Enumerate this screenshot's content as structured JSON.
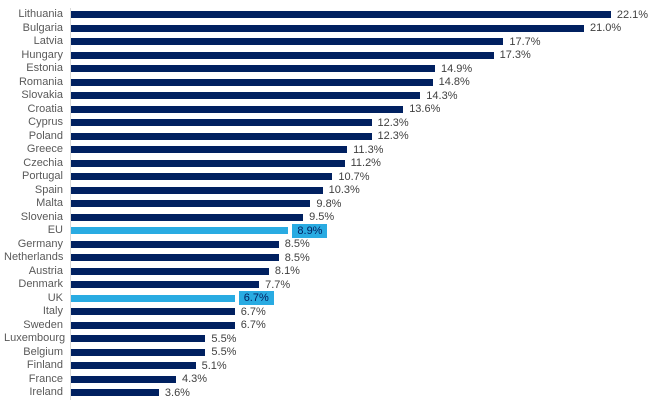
{
  "chart_data": {
    "type": "bar",
    "orientation": "horizontal",
    "title": "",
    "xlabel": "",
    "ylabel": "",
    "xlim": [
      0,
      24.2
    ],
    "grid": false,
    "legend": false,
    "categories": [
      "Lithuania",
      "Bulgaria",
      "Latvia",
      "Hungary",
      "Estonia",
      "Romania",
      "Slovakia",
      "Croatia",
      "Cyprus",
      "Poland",
      "Greece",
      "Czechia",
      "Portugal",
      "Spain",
      "Malta",
      "Slovenia",
      "EU",
      "Germany",
      "Netherlands",
      "Austria",
      "Denmark",
      "UK",
      "Italy",
      "Sweden",
      "Luxembourg",
      "Belgium",
      "Finland",
      "France",
      "Ireland"
    ],
    "values": [
      22.1,
      21.0,
      17.7,
      17.3,
      14.9,
      14.8,
      14.3,
      13.6,
      12.3,
      12.3,
      11.3,
      11.2,
      10.7,
      10.3,
      9.8,
      9.5,
      8.9,
      8.5,
      8.5,
      8.1,
      7.7,
      6.7,
      6.7,
      6.7,
      5.5,
      5.5,
      5.1,
      4.3,
      3.6
    ],
    "value_labels": [
      "22.1%",
      "21.0%",
      "17.7%",
      "17.3%",
      "14.9%",
      "14.8%",
      "14.3%",
      "13.6%",
      "12.3%",
      "12.3%",
      "11.3%",
      "11.2%",
      "10.7%",
      "10.3%",
      "9.8%",
      "9.5%",
      "8.9%",
      "8.5%",
      "8.5%",
      "8.1%",
      "7.7%",
      "6.7%",
      "6.7%",
      "6.7%",
      "5.5%",
      "5.5%",
      "5.1%",
      "4.3%",
      "3.6%"
    ],
    "highlighted_categories": [
      "EU",
      "UK"
    ],
    "colors": {
      "bar": "#002060",
      "highlight_bar": "#29abe2",
      "highlight_label_bg": "#29abe2",
      "highlight_label_text": "#002060",
      "axis_line": "#d9d9d9",
      "category_label": "#595959",
      "value_label": "#404040"
    }
  }
}
